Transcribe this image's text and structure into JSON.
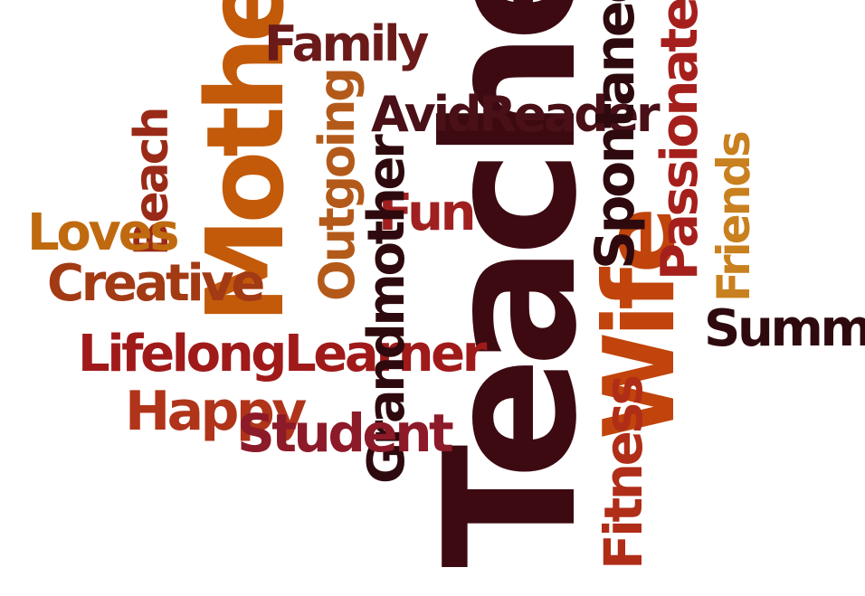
{
  "words": [
    {
      "text": "Teacher",
      "color": "#3d0a12",
      "orientation": "vertical"
    },
    {
      "text": "Mother",
      "color": "#c25a0a",
      "orientation": "vertical"
    },
    {
      "text": "Wife",
      "color": "#c0440c",
      "orientation": "vertical"
    },
    {
      "text": "Family",
      "color": "#6b1a1a",
      "orientation": "horizontal"
    },
    {
      "text": "AvidReader",
      "color": "#4a1018",
      "orientation": "horizontal"
    },
    {
      "text": "Spontaneous",
      "color": "#2e0a0e",
      "orientation": "vertical"
    },
    {
      "text": "Passionate",
      "color": "#a5201c",
      "orientation": "vertical"
    },
    {
      "text": "Friends",
      "color": "#c9801e",
      "orientation": "vertical"
    },
    {
      "text": "Summer",
      "color": "#2e0a0e",
      "orientation": "horizontal"
    },
    {
      "text": "Outgoing",
      "color": "#b35a1a",
      "orientation": "vertical"
    },
    {
      "text": "Fun",
      "color": "#a02020",
      "orientation": "horizontal"
    },
    {
      "text": "Beach",
      "color": "#9a2a18",
      "orientation": "vertical"
    },
    {
      "text": "Loves",
      "color": "#c06a10",
      "orientation": "horizontal"
    },
    {
      "text": "Creative",
      "color": "#a23a14",
      "orientation": "horizontal"
    },
    {
      "text": "LifelongLearner",
      "color": "#a01a1a",
      "orientation": "horizontal"
    },
    {
      "text": "Grandmother",
      "color": "#2e0a0e",
      "orientation": "vertical"
    },
    {
      "text": "Happy",
      "color": "#b0341a",
      "orientation": "horizontal"
    },
    {
      "text": "Student",
      "color": "#8c1a28",
      "orientation": "horizontal"
    },
    {
      "text": "Fitness",
      "color": "#b02d18",
      "orientation": "vertical"
    }
  ]
}
